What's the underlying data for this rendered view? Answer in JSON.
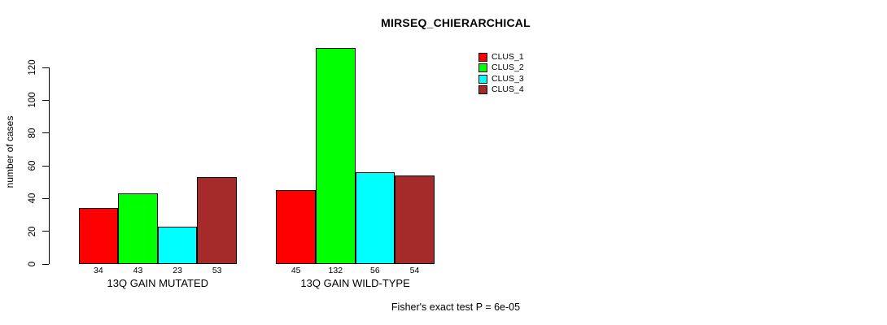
{
  "chart_data": {
    "type": "bar",
    "title": "MIRSEQ_CHIERARCHICAL",
    "ylabel": "number of cases",
    "xlabel": "",
    "ylim": [
      0,
      120
    ],
    "yticks": [
      0,
      20,
      40,
      60,
      80,
      100,
      120
    ],
    "grid": false,
    "legend_position": "top-right",
    "bar_value_labels_shown": true,
    "categories": [
      "13Q GAIN MUTATED",
      "13Q GAIN WILD-TYPE"
    ],
    "series": [
      {
        "name": "CLUS_1",
        "color": "#ff0000",
        "values": [
          34,
          45
        ]
      },
      {
        "name": "CLUS_2",
        "color": "#00ff00",
        "values": [
          43,
          132
        ]
      },
      {
        "name": "CLUS_3",
        "color": "#00ffff",
        "values": [
          23,
          56
        ]
      },
      {
        "name": "CLUS_4",
        "color": "#a52a2a",
        "values": [
          53,
          54
        ]
      }
    ]
  },
  "footnote": "Fisher's exact test P = 6e-05"
}
